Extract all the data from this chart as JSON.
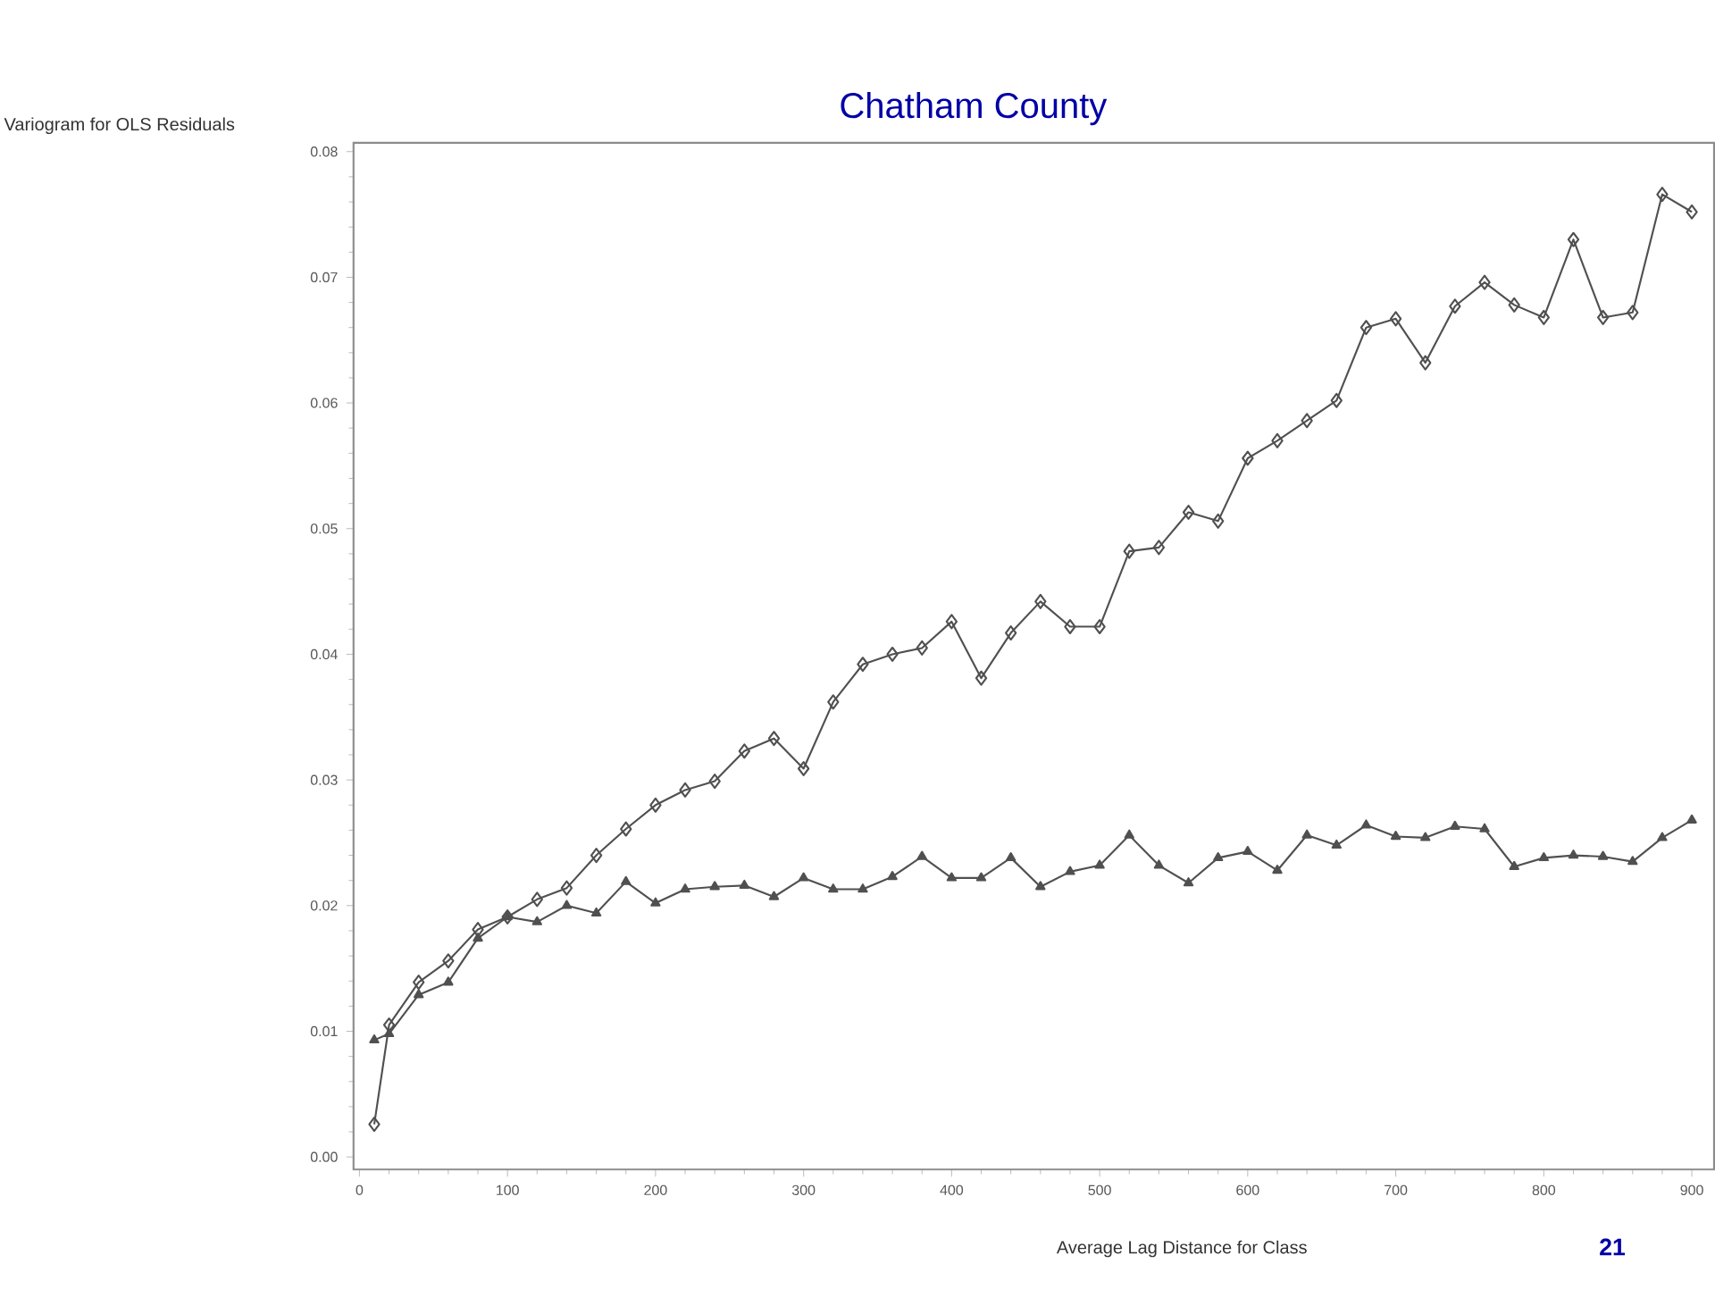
{
  "chart_data": {
    "type": "line",
    "title": "Chatham County",
    "ylabel": "Variogram for OLS Residuals",
    "xlabel": "Average Lag Distance for Class",
    "annotations": [
      "21"
    ],
    "x": [
      10,
      20,
      40,
      60,
      80,
      100,
      120,
      140,
      160,
      180,
      200,
      220,
      240,
      260,
      280,
      300,
      320,
      340,
      360,
      380,
      400,
      420,
      440,
      460,
      480,
      500,
      520,
      540,
      560,
      580,
      600,
      620,
      640,
      660,
      680,
      700,
      720,
      740,
      760,
      780,
      800,
      820,
      840,
      860,
      880,
      900
    ],
    "series": [
      {
        "color": "#505050",
        "marker": "diamond",
        "values": [
          0.0026,
          0.0105,
          0.0139,
          0.0156,
          0.0181,
          0.0191,
          0.0205,
          0.0214,
          0.024,
          0.0261,
          0.028,
          0.0292,
          0.0299,
          0.0323,
          0.0333,
          0.0309,
          0.0362,
          0.0392,
          0.04,
          0.0405,
          0.0426,
          0.0381,
          0.0417,
          0.0442,
          0.0422,
          0.0422,
          0.0482,
          0.0485,
          0.0513,
          0.0506,
          0.0556,
          0.057,
          0.0586,
          0.0602,
          0.066,
          0.0667,
          0.0632,
          0.0677,
          0.0696,
          0.0678,
          0.0668,
          0.073,
          0.0668,
          0.0672,
          0.0766,
          0.0752
        ]
      },
      {
        "color": "#505050",
        "marker": "triangle",
        "values": [
          0.0093,
          0.0098,
          0.0129,
          0.0139,
          0.0174,
          0.0191,
          0.0187,
          0.02,
          0.0194,
          0.0219,
          0.0202,
          0.0213,
          0.0215,
          0.0216,
          0.0207,
          0.0222,
          0.0213,
          0.0213,
          0.0223,
          0.0239,
          0.0222,
          0.0222,
          0.0238,
          0.0215,
          0.0227,
          0.0232,
          0.0256,
          0.0232,
          0.0218,
          0.0238,
          0.0243,
          0.0228,
          0.0256,
          0.0248,
          0.0264,
          0.0255,
          0.0254,
          0.0263,
          0.0261,
          0.0231,
          0.0238,
          0.024,
          0.0239,
          0.0235,
          0.0254,
          0.0268
        ]
      }
    ],
    "xlim": [
      -4,
      915
    ],
    "ylim": [
      -0.001,
      0.0807
    ],
    "xticks": [
      0,
      100,
      200,
      300,
      400,
      500,
      600,
      700,
      800,
      900
    ],
    "yticks": [
      {
        "value": 0,
        "label": "0.00"
      },
      {
        "value": 0.01,
        "label": "0.01"
      },
      {
        "value": 0.02,
        "label": "0.02"
      },
      {
        "value": 0.03,
        "label": "0.03"
      },
      {
        "value": 0.04,
        "label": "0.04"
      },
      {
        "value": 0.05,
        "label": "0.05"
      },
      {
        "value": 0.06,
        "label": "0.06"
      },
      {
        "value": 0.07,
        "label": "0.07"
      },
      {
        "value": 0.08,
        "label": "0.08"
      }
    ]
  }
}
